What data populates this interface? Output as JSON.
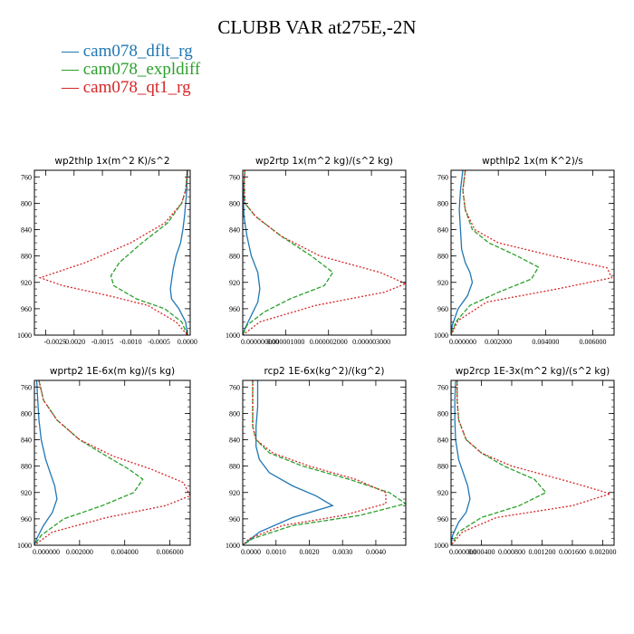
{
  "title": "CLUBB VAR at275E,-2N",
  "legend": [
    {
      "label": "— cam078_dflt_rg",
      "color": "#1f77b4"
    },
    {
      "label": "— cam078_expldiff",
      "color": "#2ca02c"
    },
    {
      "label": "— cam078_qt1_rg",
      "color": "#d62728"
    }
  ],
  "chart_data": [
    {
      "type": "line",
      "title": "wp2thlp   1x(m^2 K)/s^2",
      "xlim": [
        -0.0027,
        5e-05
      ],
      "ylim": [
        1000,
        750
      ],
      "xticks": [
        -0.0025,
        -0.002,
        -0.0015,
        -0.001,
        -0.0005,
        0
      ],
      "xticklabels": [
        "-0.0025",
        "-0.0020",
        "-0.0015",
        "-0.0010",
        "-0.0005",
        "0.0000"
      ],
      "yticks": [
        760,
        800,
        840,
        880,
        920,
        960,
        1000
      ],
      "series": [
        {
          "name": "cam078_dflt_rg",
          "color": "#1f77b4",
          "dash": "",
          "x": [
            0,
            -1e-05,
            -3e-05,
            -5e-05,
            -8e-05,
            -0.00012,
            -0.0002,
            -0.00025,
            -0.0003,
            -0.00028,
            -0.00015,
            -3e-05,
            0
          ],
          "y": [
            750,
            780,
            800,
            820,
            840,
            860,
            880,
            900,
            930,
            945,
            960,
            980,
            1000
          ]
        },
        {
          "name": "cam078_expldiff",
          "color": "#2ca02c",
          "dash": "5,2",
          "x": [
            0,
            -3e-05,
            -0.0001,
            -0.00035,
            -0.0008,
            -0.0012,
            -0.00135,
            -0.0013,
            -0.0009,
            -0.0004,
            -0.0001,
            0
          ],
          "y": [
            750,
            780,
            800,
            830,
            860,
            890,
            910,
            925,
            945,
            960,
            980,
            1000
          ]
        },
        {
          "name": "cam078_qt1_rg",
          "color": "#d62728",
          "dash": "2,2",
          "x": [
            0,
            -3e-05,
            -0.0001,
            -0.0004,
            -0.001,
            -0.0018,
            -0.0026,
            -0.0022,
            -0.0014,
            -0.0007,
            -0.0002,
            0
          ],
          "y": [
            750,
            780,
            800,
            830,
            860,
            890,
            913,
            925,
            940,
            955,
            980,
            1000
          ]
        }
      ]
    },
    {
      "type": "line",
      "title": "wp2rtp   1x(m^2 kg)/(s^2 kg)",
      "xlim": [
        0,
        3.8e-06
      ],
      "ylim": [
        1000,
        750
      ],
      "xticks": [
        0,
        1e-06,
        2e-06,
        3e-06
      ],
      "xticklabels": [
        "0.000000000",
        "0.000001000",
        "0.000002000",
        "0.000003000"
      ],
      "yticks": [
        760,
        800,
        840,
        880,
        920,
        960,
        1000
      ],
      "series": [
        {
          "name": "cam078_dflt_rg",
          "color": "#1f77b4",
          "dash": "",
          "x": [
            5e-08,
            3e-08,
            2e-08,
            3e-08,
            1e-07,
            2e-07,
            3.5e-07,
            4e-07,
            3.5e-07,
            2e-07,
            5e-08,
            0
          ],
          "y": [
            750,
            770,
            800,
            820,
            850,
            880,
            905,
            930,
            950,
            970,
            990,
            1000
          ]
        },
        {
          "name": "cam078_expldiff",
          "color": "#2ca02c",
          "dash": "5,2",
          "x": [
            5e-08,
            3e-08,
            5e-08,
            3e-07,
            9e-07,
            1.6e-06,
            2.1e-06,
            1.9e-06,
            1.1e-06,
            5e-07,
            1e-07,
            0
          ],
          "y": [
            750,
            770,
            800,
            820,
            850,
            880,
            905,
            925,
            945,
            965,
            985,
            1000
          ]
        },
        {
          "name": "cam078_qt1_rg",
          "color": "#d62728",
          "dash": "2,2",
          "x": [
            5e-08,
            3e-08,
            5e-08,
            3e-07,
            9e-07,
            1.8e-06,
            3.2e-06,
            3.8e-06,
            3.3e-06,
            1.7e-06,
            4e-07,
            0
          ],
          "y": [
            750,
            770,
            800,
            820,
            850,
            880,
            905,
            922,
            935,
            955,
            980,
            1000
          ]
        }
      ]
    },
    {
      "type": "line",
      "title": "wpthlp2   1x(m K^2)/s",
      "xlim": [
        0,
        0.0069
      ],
      "ylim": [
        1000,
        750
      ],
      "xticks": [
        0,
        0.002,
        0.004,
        0.006
      ],
      "xticklabels": [
        "0.000000",
        "0.002000",
        "0.004000",
        "0.006000"
      ],
      "yticks": [
        760,
        800,
        840,
        880,
        920,
        960,
        1000
      ],
      "series": [
        {
          "name": "cam078_dflt_rg",
          "color": "#1f77b4",
          "dash": "",
          "x": [
            0.0005,
            0.0004,
            0.00035,
            0.0004,
            0.00045,
            0.0006,
            0.0008,
            0.0009,
            0.0007,
            0.0003,
            5e-05,
            0
          ],
          "y": [
            750,
            780,
            810,
            840,
            870,
            890,
            905,
            920,
            940,
            960,
            985,
            1000
          ]
        },
        {
          "name": "cam078_expldiff",
          "color": "#2ca02c",
          "dash": "5,2",
          "x": [
            0.0006,
            0.0005,
            0.0006,
            0.0009,
            0.0016,
            0.0028,
            0.0037,
            0.0034,
            0.002,
            0.0008,
            0.0002,
            0
          ],
          "y": [
            750,
            780,
            810,
            840,
            860,
            880,
            897,
            915,
            935,
            955,
            980,
            1000
          ]
        },
        {
          "name": "cam078_qt1_rg",
          "color": "#d62728",
          "dash": "2,2",
          "x": [
            0.0006,
            0.0005,
            0.0006,
            0.001,
            0.002,
            0.0043,
            0.0066,
            0.0068,
            0.0045,
            0.0015,
            0.0003,
            0
          ],
          "y": [
            750,
            780,
            810,
            840,
            860,
            880,
            898,
            913,
            930,
            950,
            978,
            1000
          ]
        }
      ]
    },
    {
      "type": "line",
      "title": "wprtp2   1E-6x(m kg)/(s kg)",
      "xlim": [
        0,
        0.0069
      ],
      "ylim": [
        1000,
        750
      ],
      "xticks": [
        0,
        0.002,
        0.004,
        0.006
      ],
      "xticklabels": [
        "0.000000",
        "0.002000",
        "0.004000",
        "0.006000"
      ],
      "yticks": [
        760,
        800,
        840,
        880,
        920,
        960,
        1000
      ],
      "series": [
        {
          "name": "cam078_dflt_rg",
          "color": "#1f77b4",
          "dash": "",
          "x": [
            0.0001,
            0.00015,
            0.0002,
            0.0003,
            0.0005,
            0.0007,
            0.0009,
            0.001,
            0.0008,
            0.0004,
            0.0001,
            0
          ],
          "y": [
            750,
            780,
            810,
            840,
            870,
            890,
            910,
            930,
            950,
            970,
            990,
            1000
          ]
        },
        {
          "name": "cam078_expldiff",
          "color": "#2ca02c",
          "dash": "5,2",
          "x": [
            0.0002,
            0.0004,
            0.001,
            0.002,
            0.0032,
            0.0042,
            0.0048,
            0.0044,
            0.003,
            0.0013,
            0.0003,
            0
          ],
          "y": [
            750,
            780,
            810,
            840,
            865,
            885,
            900,
            920,
            940,
            960,
            985,
            1000
          ]
        },
        {
          "name": "cam078_qt1_rg",
          "color": "#d62728",
          "dash": "2,2",
          "x": [
            0.0002,
            0.0004,
            0.001,
            0.002,
            0.0035,
            0.0052,
            0.0066,
            0.0069,
            0.0058,
            0.0032,
            0.0008,
            0
          ],
          "y": [
            750,
            780,
            810,
            840,
            865,
            885,
            905,
            925,
            940,
            958,
            980,
            1000
          ]
        }
      ]
    },
    {
      "type": "line",
      "title": "rcp2   1E-6x(kg^2)/(kg^2)",
      "xlim": [
        0,
        0.0049
      ],
      "ylim": [
        1000,
        750
      ],
      "xticks": [
        0,
        0.001,
        0.002,
        0.003,
        0.004
      ],
      "xticklabels": [
        "0.0000",
        "0.0010",
        "0.0020",
        "0.0030",
        "0.0040"
      ],
      "yticks": [
        760,
        800,
        840,
        880,
        920,
        960,
        1000
      ],
      "series": [
        {
          "name": "cam078_dflt_rg",
          "color": "#1f77b4",
          "dash": "",
          "x": [
            0.00045,
            0.00045,
            0.0004,
            0.0004,
            0.0005,
            0.0008,
            0.0015,
            0.0022,
            0.0027,
            0.0015,
            0.0005,
            0
          ],
          "y": [
            750,
            790,
            820,
            850,
            870,
            890,
            910,
            925,
            940,
            958,
            980,
            1000
          ]
        },
        {
          "name": "cam078_expldiff",
          "color": "#2ca02c",
          "dash": "5,2",
          "x": [
            0.0003,
            0.0003,
            0.0003,
            0.0004,
            0.0008,
            0.0018,
            0.0032,
            0.0044,
            0.0049,
            0.0035,
            0.0015,
            0.0003,
            0
          ],
          "y": [
            750,
            790,
            820,
            840,
            860,
            880,
            900,
            920,
            937,
            955,
            970,
            990,
            1000
          ]
        },
        {
          "name": "cam078_qt1_rg",
          "color": "#d62728",
          "dash": "2,2",
          "x": [
            0.0003,
            0.0003,
            0.0003,
            0.0004,
            0.0009,
            0.002,
            0.0034,
            0.0043,
            0.0043,
            0.003,
            0.0012,
            0.0002,
            0
          ],
          "y": [
            750,
            790,
            820,
            840,
            860,
            880,
            900,
            920,
            937,
            955,
            970,
            990,
            1000
          ]
        }
      ]
    },
    {
      "type": "line",
      "title": "wp2rcp   1E-3x(m^2 kg)/(s^2 kg)",
      "xlim": [
        0,
        0.00215
      ],
      "ylim": [
        1000,
        750
      ],
      "xticks": [
        0,
        0.0004,
        0.0008,
        0.0012,
        0.0016,
        0.002
      ],
      "xticklabels": [
        "0.000000",
        "0.000400",
        "0.000800",
        "0.001200",
        "0.001600",
        "0.002000"
      ],
      "yticks": [
        760,
        800,
        840,
        880,
        920,
        960,
        1000
      ],
      "series": [
        {
          "name": "cam078_dflt_rg",
          "color": "#1f77b4",
          "dash": "",
          "x": [
            6e-05,
            5e-05,
            5e-05,
            6e-05,
            0.0001,
            0.00016,
            0.00022,
            0.00025,
            0.0002,
            0.0001,
            2e-05,
            0
          ],
          "y": [
            750,
            780,
            810,
            840,
            870,
            890,
            910,
            930,
            950,
            965,
            985,
            1000
          ]
        },
        {
          "name": "cam078_expldiff",
          "color": "#2ca02c",
          "dash": "5,2",
          "x": [
            8e-05,
            8e-05,
            0.0001,
            0.0002,
            0.0004,
            0.0007,
            0.0011,
            0.00125,
            0.0009,
            0.0004,
            0.0001,
            0
          ],
          "y": [
            750,
            780,
            810,
            840,
            860,
            880,
            900,
            920,
            940,
            958,
            980,
            1000
          ]
        },
        {
          "name": "cam078_qt1_rg",
          "color": "#d62728",
          "dash": "2,2",
          "x": [
            8e-05,
            8e-05,
            0.0001,
            0.0002,
            0.0004,
            0.0008,
            0.0016,
            0.0021,
            0.0016,
            0.0006,
            0.00015,
            0
          ],
          "y": [
            750,
            780,
            810,
            840,
            860,
            880,
            905,
            922,
            940,
            958,
            980,
            1000
          ]
        }
      ]
    }
  ]
}
